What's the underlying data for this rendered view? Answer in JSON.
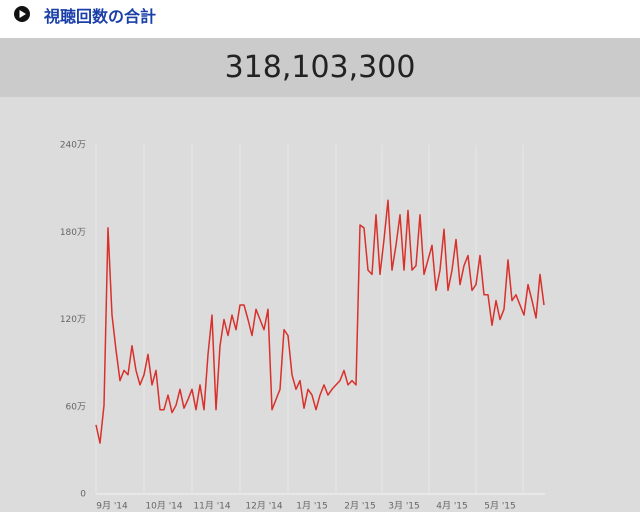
{
  "header": {
    "title": "視聴回数の合計"
  },
  "total": "318,103,300",
  "chart_data": {
    "type": "line",
    "color": "#d9302b",
    "ylim": [
      0,
      2400000
    ],
    "yticks": [
      0,
      {
        "value": 600000,
        "label": "60万"
      },
      {
        "value": 1200000,
        "label": "120万"
      },
      {
        "value": 1800000,
        "label": "180万"
      },
      {
        "value": 2400000,
        "label": "240万"
      }
    ],
    "categories": [
      null,
      null,
      null,
      null,
      "9月 '14",
      null,
      null,
      null,
      null,
      null,
      null,
      null,
      null,
      null,
      null,
      null,
      null,
      "10月 '14",
      null,
      null,
      null,
      null,
      null,
      null,
      null,
      null,
      null,
      null,
      null,
      "11月 '14",
      null,
      null,
      null,
      null,
      null,
      null,
      null,
      null,
      null,
      null,
      null,
      null,
      "12月 '14",
      null,
      null,
      null,
      null,
      null,
      null,
      null,
      null,
      null,
      null,
      null,
      "1月 '15",
      null,
      null,
      null,
      null,
      null,
      null,
      null,
      null,
      null,
      null,
      null,
      "2月 '15",
      null,
      null,
      null,
      null,
      null,
      null,
      null,
      null,
      null,
      null,
      "3月 '15",
      null,
      null,
      null,
      null,
      null,
      null,
      null,
      null,
      null,
      null,
      null,
      "4月 '15",
      null,
      null,
      null,
      null,
      null,
      null,
      null,
      null,
      null,
      null,
      null,
      "5月 '15",
      null,
      null,
      null,
      null,
      null,
      null,
      null,
      null,
      null,
      null,
      null
    ],
    "values": [
      475000,
      350000,
      610000,
      1830000,
      1230000,
      990000,
      780000,
      850000,
      820000,
      1020000,
      850000,
      750000,
      820000,
      960000,
      750000,
      850000,
      580000,
      580000,
      680000,
      560000,
      610000,
      720000,
      590000,
      650000,
      720000,
      580000,
      750000,
      580000,
      960000,
      1230000,
      580000,
      1020000,
      1200000,
      1090000,
      1230000,
      1130000,
      1300000,
      1300000,
      1200000,
      1090000,
      1270000,
      1200000,
      1130000,
      1270000,
      580000,
      650000,
      720000,
      1130000,
      1090000,
      820000,
      720000,
      780000,
      590000,
      720000,
      680000,
      580000,
      680000,
      750000,
      680000,
      720000,
      750000,
      780000,
      850000,
      750000,
      780000,
      750000,
      1850000,
      1830000,
      1540000,
      1510000,
      1920000,
      1510000,
      1750000,
      2020000,
      1540000,
      1710000,
      1920000,
      1540000,
      1950000,
      1540000,
      1570000,
      1920000,
      1510000,
      1610000,
      1710000,
      1400000,
      1540000,
      1820000,
      1400000,
      1540000,
      1750000,
      1440000,
      1570000,
      1640000,
      1400000,
      1440000,
      1640000,
      1370000,
      1370000,
      1160000,
      1330000,
      1200000,
      1270000,
      1610000,
      1330000,
      1370000,
      1300000,
      1230000,
      1440000,
      1330000,
      1210000,
      1510000,
      1300000
    ]
  }
}
